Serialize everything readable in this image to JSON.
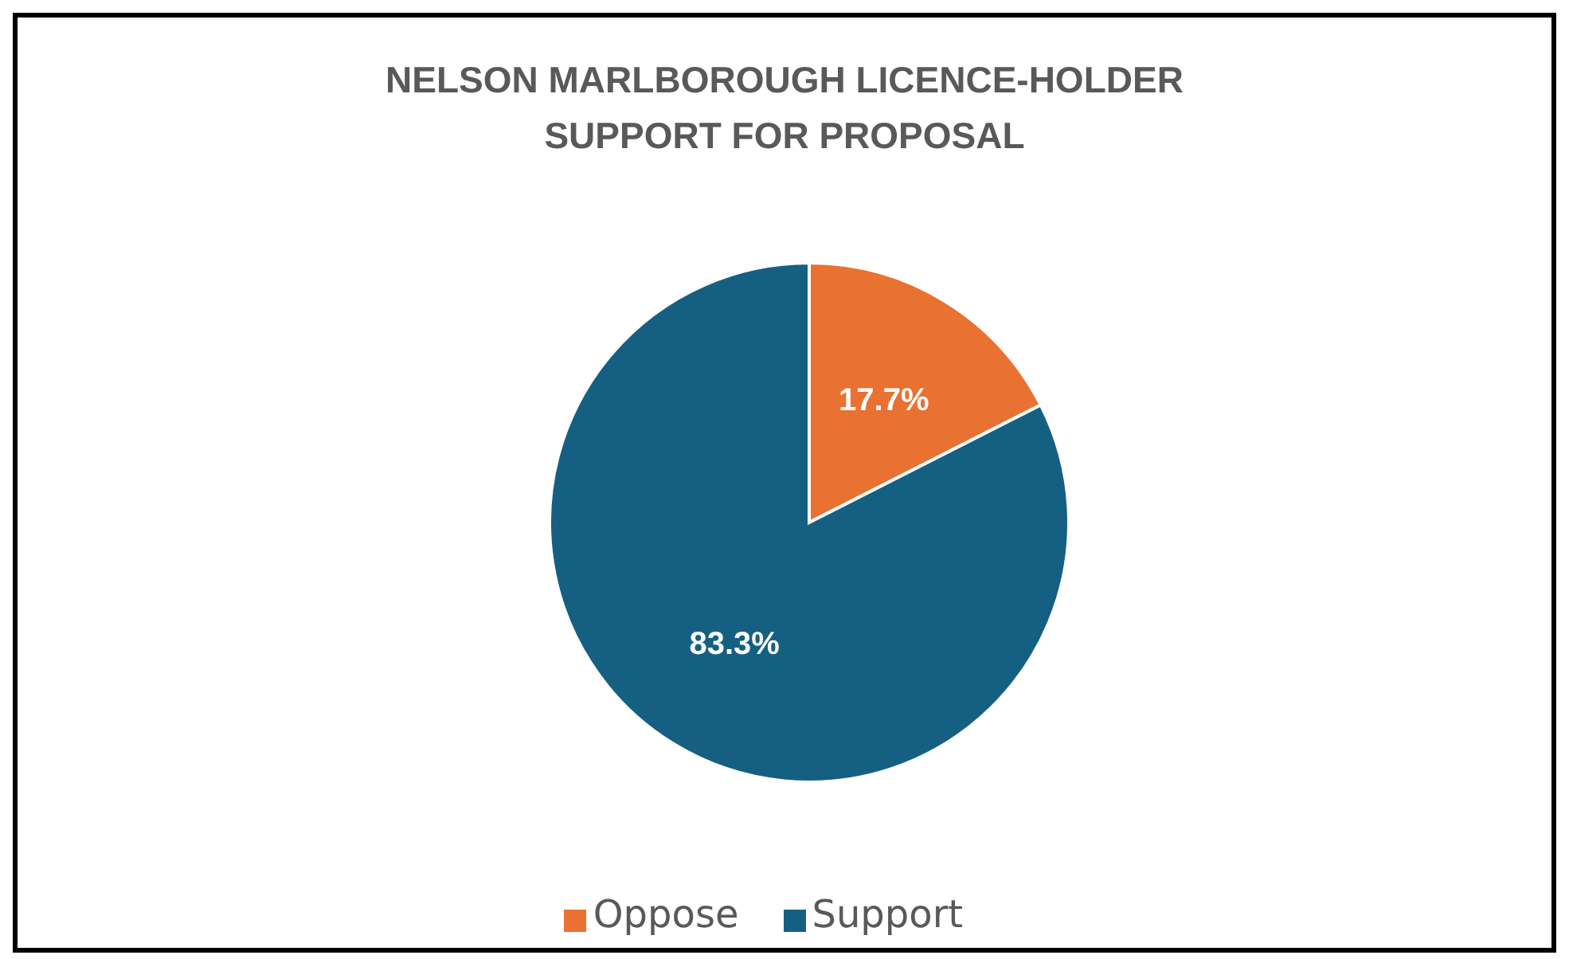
{
  "chart_data": {
    "type": "pie",
    "title": "NELSON MARLBOROUGH LICENCE-HOLDER SUPPORT FOR PROPOSAL",
    "categories": [
      "Oppose",
      "Support"
    ],
    "values": [
      17.7,
      83.3
    ],
    "colors": [
      "#e97132",
      "#156082"
    ],
    "value_labels": [
      "17.7%",
      "83.3%"
    ],
    "legend": "bottom"
  }
}
